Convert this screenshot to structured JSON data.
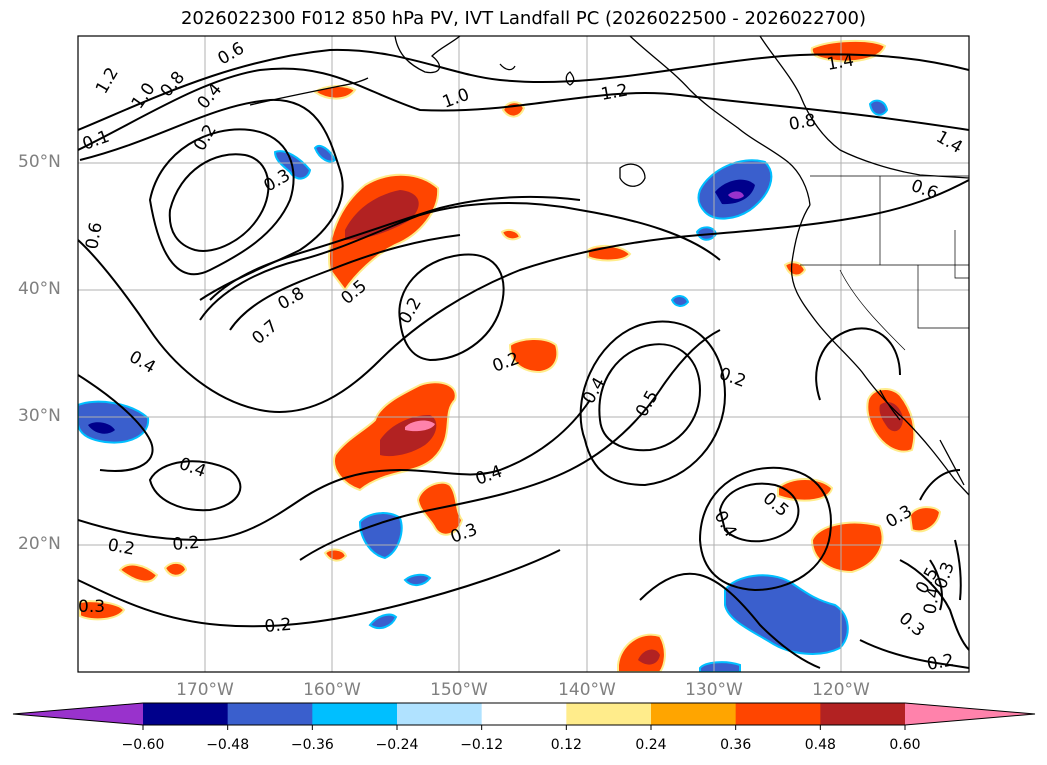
{
  "title": "2026022300 F012 850 hPa PV, IVT Landfall PC (2026022500 - 2026022700)",
  "map": {
    "lat_labels": [
      "50°N",
      "40°N",
      "30°N",
      "20°N"
    ],
    "lon_labels": [
      "170°W",
      "160°W",
      "150°W",
      "140°W",
      "130°W",
      "120°W"
    ],
    "pv_contour_labels": [
      "1.2",
      "1.0",
      "0.8",
      "0.6",
      "0.4",
      "0.2",
      "0.1",
      "0.3",
      "0.6",
      "1.0",
      "1.2",
      "0.8",
      "1.4",
      "1.4",
      "0.6",
      "0.8",
      "0.5",
      "0.7",
      "0.2",
      "0.4",
      "0.2",
      "0.4",
      "0.5",
      "0.2",
      "0.4",
      "0.4",
      "0.3",
      "0.2",
      "0.2",
      "0.5",
      "0.4",
      "0.3",
      "0.3",
      "0.5",
      "0.4",
      "0.3",
      "0.2",
      "0.3",
      "0.2"
    ]
  },
  "colorbar": {
    "ticks": [
      "−0.60",
      "−0.48",
      "−0.36",
      "−0.24",
      "−0.12",
      "0.12",
      "0.24",
      "0.36",
      "0.48",
      "0.60"
    ],
    "colors": {
      "under": "#9932cc",
      "bins": [
        "#00008b",
        "#3a5fcd",
        "#00bfff",
        "#b0e2ff",
        "#ffffff",
        "#ffec8b",
        "#ffa500",
        "#ff4500",
        "#b22222"
      ],
      "over": "#ff82ab"
    }
  }
}
